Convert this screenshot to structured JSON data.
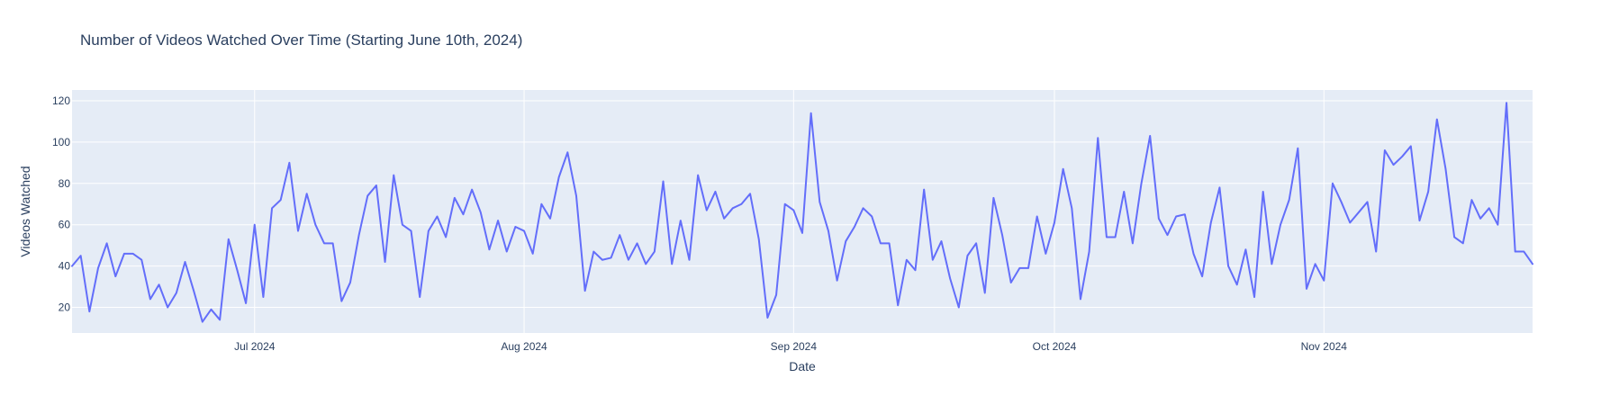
{
  "chart_data": {
    "type": "line",
    "title": "Number of Videos Watched Over Time (Starting June 10th, 2024)",
    "xlabel": "Date",
    "ylabel": "Videos Watched",
    "x_start": "2024-06-10",
    "x_end": "2024-11-25",
    "xlim": [
      "2024-06-10",
      "2024-11-25"
    ],
    "ylim": [
      7.6,
      125.2
    ],
    "x_ticks": [
      {
        "date": "2024-07-01",
        "label": "Jul 2024"
      },
      {
        "date": "2024-08-01",
        "label": "Aug 2024"
      },
      {
        "date": "2024-09-01",
        "label": "Sep 2024"
      },
      {
        "date": "2024-10-01",
        "label": "Oct 2024"
      },
      {
        "date": "2024-11-01",
        "label": "Nov 2024"
      }
    ],
    "y_ticks": [
      20,
      40,
      60,
      80,
      100,
      120
    ],
    "grid": true,
    "colors": {
      "line": "#636efa",
      "plot_bg": "#e5ecf6",
      "grid": "#ffffff"
    },
    "series": [
      {
        "values": [
          40,
          45,
          18,
          39,
          51,
          35,
          46,
          46,
          43,
          24,
          31,
          20,
          27,
          42,
          28,
          13,
          19,
          14,
          53,
          38,
          22,
          60,
          25,
          68,
          72,
          90,
          57,
          75,
          60,
          51,
          51,
          23,
          32,
          55,
          74,
          79,
          42,
          84,
          60,
          57,
          25,
          57,
          64,
          54,
          73,
          65,
          77,
          66,
          48,
          62,
          47,
          59,
          57,
          46,
          70,
          63,
          83,
          95,
          74,
          28,
          47,
          43,
          44,
          55,
          43,
          51,
          41,
          47,
          81,
          41,
          62,
          43,
          84,
          67,
          76,
          63,
          68,
          70,
          75,
          53,
          15,
          26,
          70,
          67,
          56,
          114,
          71,
          57,
          33,
          52,
          59,
          68,
          64,
          51,
          51,
          21,
          43,
          38,
          77,
          43,
          52,
          34,
          20,
          45,
          51,
          27,
          73,
          55,
          32,
          39,
          39,
          64,
          46,
          61,
          87,
          68,
          24,
          47,
          102,
          54,
          54,
          76,
          51,
          80,
          103,
          63,
          55,
          64,
          65,
          46,
          35,
          61,
          78,
          40,
          31,
          48,
          25,
          76,
          41,
          60,
          72,
          97,
          29,
          41,
          33,
          80,
          71,
          61,
          66,
          71,
          47,
          96,
          89,
          93,
          98,
          62,
          76,
          111,
          87,
          54,
          51,
          72,
          63,
          68,
          60,
          119,
          47,
          47,
          41
        ]
      }
    ]
  }
}
